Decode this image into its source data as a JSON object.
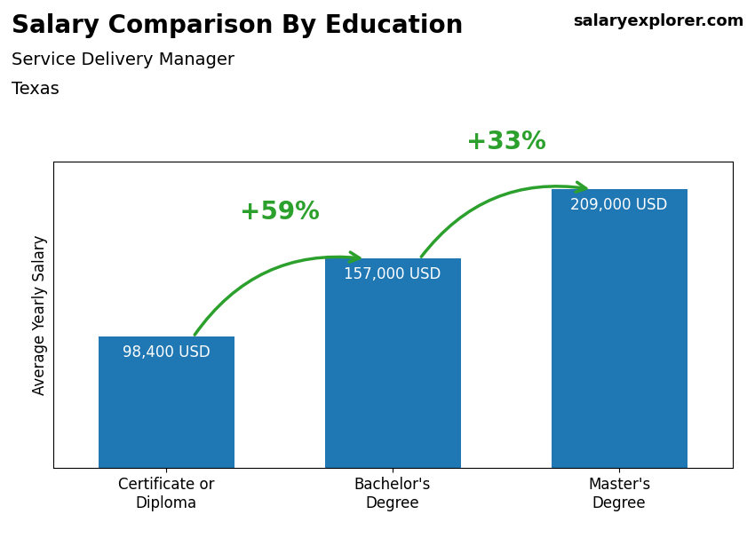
{
  "chart_data": {
    "type": "bar",
    "title": "Salary Comparison By Education",
    "subtitle": "Service Delivery Manager",
    "location": "Texas",
    "source": "salaryexplorer.com",
    "ylabel": "Average Yearly Salary",
    "categories": [
      "Certificate or\nDiploma",
      "Bachelor's\nDegree",
      "Master's\nDegree"
    ],
    "values": [
      98400,
      157000,
      209000
    ],
    "value_labels": [
      "98,400 USD",
      "157,000 USD",
      "209,000 USD"
    ],
    "data_labels": true,
    "annotations": [
      "+59%",
      "+33%"
    ],
    "ylim": [
      0,
      230000
    ],
    "tick_labels": "x",
    "grid": false
  }
}
